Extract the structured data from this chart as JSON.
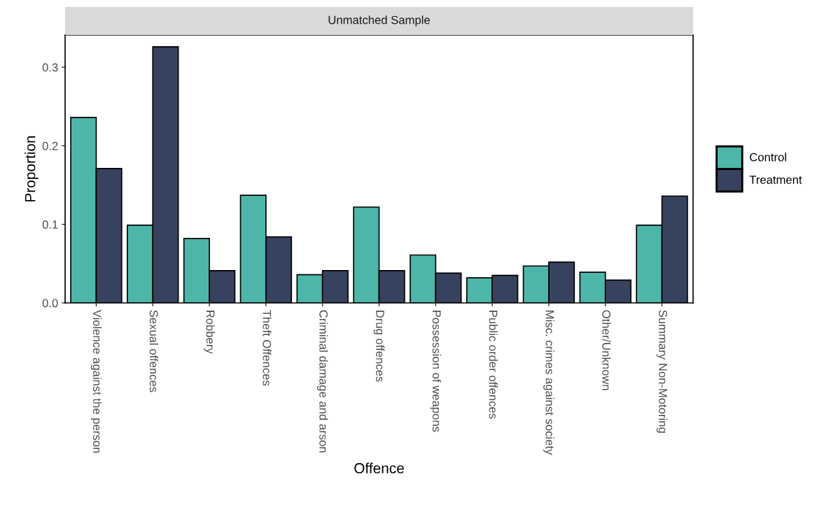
{
  "chart_data": {
    "type": "bar",
    "title": "Unmatched Sample",
    "xlabel": "Offence",
    "ylabel": "Proportion",
    "categories": [
      "Violence against the person",
      "Sexual offences",
      "Robbery",
      "Theft Offences",
      "Criminal damage and arson",
      "Drug offences",
      "Possession of weapons",
      "Public order offences",
      "Misc. crimes against society",
      "Other/Unknown",
      "Summary Non-Motoring"
    ],
    "series": [
      {
        "name": "Control",
        "color": "#4db6a9",
        "values": [
          0.236,
          0.099,
          0.082,
          0.137,
          0.036,
          0.122,
          0.061,
          0.032,
          0.047,
          0.039,
          0.099
        ]
      },
      {
        "name": "Treatment",
        "color": "#37425f",
        "values": [
          0.171,
          0.326,
          0.041,
          0.084,
          0.041,
          0.041,
          0.038,
          0.035,
          0.052,
          0.029,
          0.136
        ]
      }
    ],
    "ylim": [
      0,
      0.341
    ],
    "yticks": [
      {
        "value": 0,
        "label": "0.0"
      },
      0.1,
      0.2,
      0.3
    ],
    "grid": false,
    "legend": "right"
  }
}
